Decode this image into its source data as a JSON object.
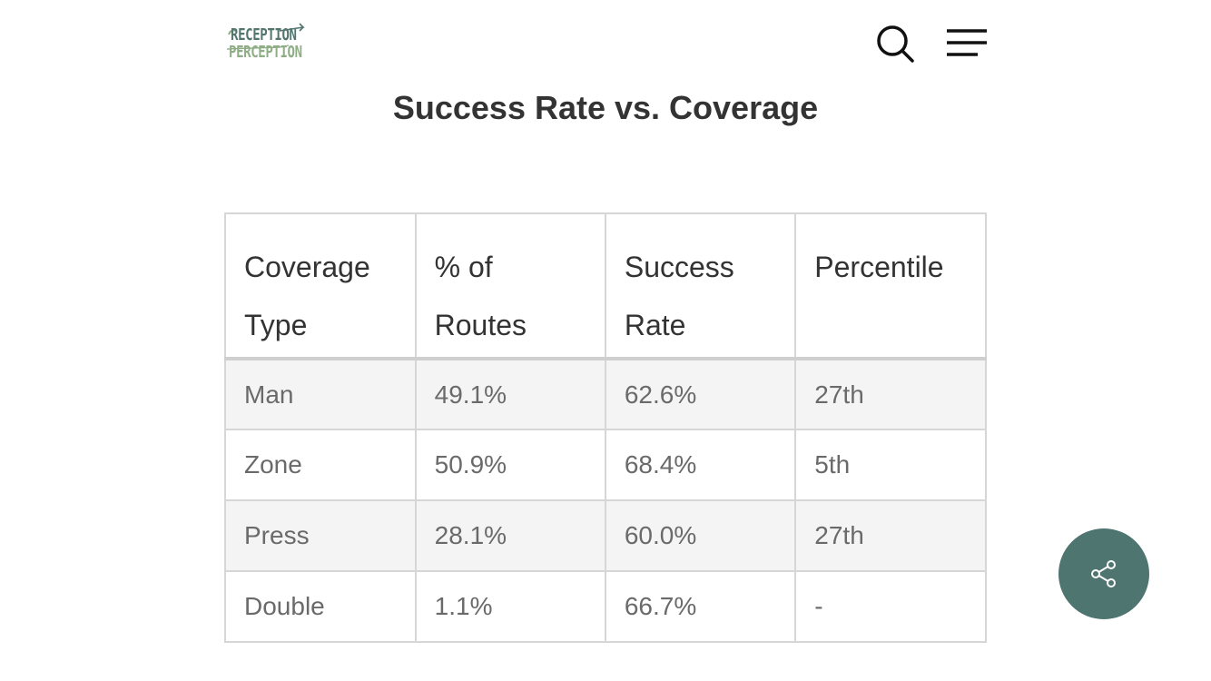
{
  "header": {
    "logo_line1": "RECEPTION",
    "logo_line2": "PERCEPTION",
    "search_icon": "search-icon",
    "menu_icon": "hamburger-menu-icon"
  },
  "page": {
    "title": "Success Rate vs. Coverage"
  },
  "table": {
    "headers": [
      [
        "Coverage",
        "Type"
      ],
      [
        "% of",
        "Routes"
      ],
      [
        "Success",
        "Rate"
      ],
      [
        "Percentile",
        ""
      ]
    ],
    "rows": [
      [
        "Man",
        "49.1%",
        "62.6%",
        "27th"
      ],
      [
        "Zone",
        "50.9%",
        "68.4%",
        "5th"
      ],
      [
        "Press",
        "28.1%",
        "60.0%",
        "27th"
      ],
      [
        "Double",
        "1.1%",
        "66.7%",
        "-"
      ]
    ]
  },
  "share": {
    "icon": "share-icon",
    "color": "#4e7570"
  }
}
